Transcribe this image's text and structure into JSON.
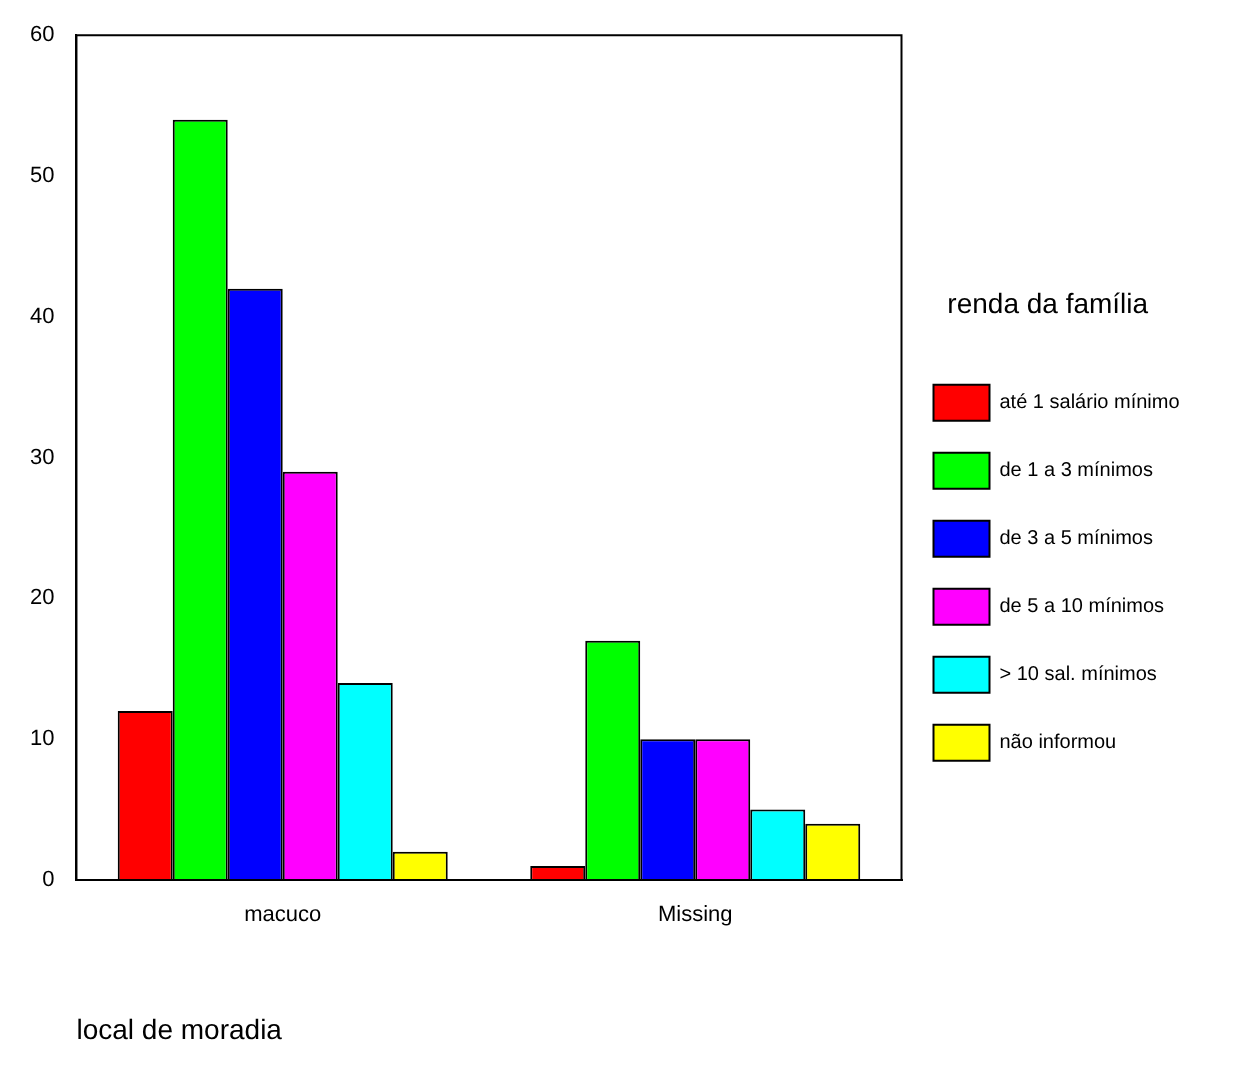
{
  "chart_data": {
    "type": "bar",
    "xlabel": "local de moradia",
    "legend_title": "renda da família",
    "categories": [
      "macuco",
      "Missing"
    ],
    "series": [
      {
        "name": "até 1 salário mínimo",
        "color": "#ff0000",
        "values": [
          12,
          1
        ]
      },
      {
        "name": "de 1 a 3 mínimos",
        "color": "#00ff00",
        "values": [
          54,
          17
        ]
      },
      {
        "name": "de 3 a 5 mínimos",
        "color": "#0000ff",
        "values": [
          42,
          10
        ]
      },
      {
        "name": "de 5 a 10 mínimos",
        "color": "#ff00ff",
        "values": [
          29,
          10
        ]
      },
      {
        "name": "> 10 sal. mínimos",
        "color": "#00ffff",
        "values": [
          14,
          5
        ]
      },
      {
        "name": "não informou",
        "color": "#ffff00",
        "values": [
          2,
          4
        ]
      }
    ],
    "ylim": [
      0,
      60
    ],
    "yticks": [
      0,
      10,
      20,
      30,
      40,
      50,
      60
    ],
    "grid": false,
    "legend": "right"
  }
}
